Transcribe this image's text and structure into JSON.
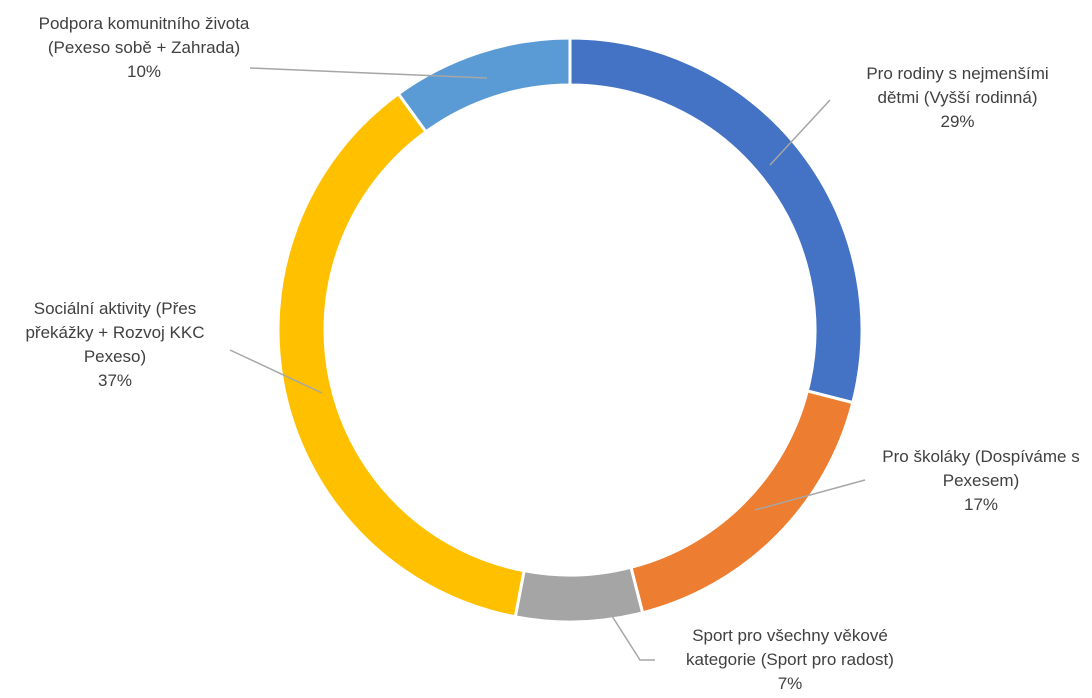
{
  "chart_data": {
    "type": "donut",
    "categories": [
      "Pro rodiny s nejmenšími dětmi (Vyšší rodinná)",
      "Pro školáky (Dospíváme s Pexesem)",
      "Sport pro všechny věkové kategorie (Sport pro radost)",
      "Sociální aktivity (Přes překážky +  Rozvoj KKC Pexeso)",
      "Podpora komunitního života  (Pexeso sobě + Zahrada)"
    ],
    "values": [
      29,
      17,
      7,
      37,
      10
    ],
    "value_labels": [
      "29%",
      "17%",
      "7%",
      "37%",
      "10%"
    ],
    "colors": [
      "#4472c4",
      "#ed7d31",
      "#a5a5a5",
      "#ffc000",
      "#5b9bd5"
    ]
  }
}
